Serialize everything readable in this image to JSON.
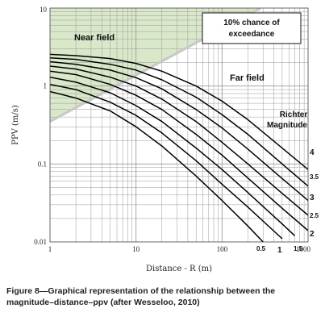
{
  "chart_data": {
    "type": "line",
    "x_scale": "log",
    "y_scale": "log",
    "xlabel": "Distance - R (m)",
    "ylabel": "PPV (m/s)",
    "xlim": [
      1,
      1000
    ],
    "ylim": [
      0.01,
      10
    ],
    "x_ticks": [
      "1",
      "10",
      "100",
      "1000"
    ],
    "y_ticks": [
      "0.01",
      "0.1",
      "1",
      "10"
    ],
    "grid": true,
    "annotation_box": "10% chance of exceedance",
    "near_field_label": "Near field",
    "far_field_label": "Far field",
    "legend_title": "Richter Magnitude",
    "series": [
      {
        "name": "0.5",
        "x": [
          1,
          2,
          5,
          10,
          20,
          50,
          100,
          200,
          300
        ],
        "y": [
          0.85,
          0.7,
          0.48,
          0.3,
          0.17,
          0.07,
          0.034,
          0.016,
          0.01
        ]
      },
      {
        "name": "1",
        "x": [
          1,
          2,
          5,
          10,
          20,
          50,
          100,
          200,
          500
        ],
        "y": [
          1.05,
          0.9,
          0.62,
          0.42,
          0.25,
          0.11,
          0.055,
          0.028,
          0.011
        ]
      },
      {
        "name": "1.5",
        "x": [
          1,
          2,
          5,
          10,
          20,
          50,
          100,
          200,
          500,
          700
        ],
        "y": [
          1.3,
          1.12,
          0.82,
          0.56,
          0.35,
          0.16,
          0.085,
          0.043,
          0.017,
          0.012
        ]
      },
      {
        "name": "2",
        "x": [
          1,
          2,
          5,
          10,
          20,
          50,
          100,
          200,
          500,
          1000
        ],
        "y": [
          1.55,
          1.4,
          1.05,
          0.76,
          0.5,
          0.24,
          0.13,
          0.066,
          0.027,
          0.014
        ]
      },
      {
        "name": "2.5",
        "x": [
          1,
          2,
          5,
          10,
          20,
          50,
          100,
          200,
          500,
          1000
        ],
        "y": [
          1.8,
          1.65,
          1.3,
          1.0,
          0.68,
          0.35,
          0.19,
          0.1,
          0.042,
          0.022
        ]
      },
      {
        "name": "3",
        "x": [
          1,
          2,
          5,
          10,
          20,
          50,
          100,
          200,
          500,
          1000
        ],
        "y": [
          2.05,
          1.9,
          1.6,
          1.28,
          0.92,
          0.5,
          0.29,
          0.155,
          0.065,
          0.034
        ]
      },
      {
        "name": "3.5",
        "x": [
          1,
          2,
          5,
          10,
          20,
          50,
          100,
          200,
          500,
          1000
        ],
        "y": [
          2.3,
          2.2,
          1.9,
          1.6,
          1.2,
          0.72,
          0.43,
          0.24,
          0.1,
          0.052
        ]
      },
      {
        "name": "4",
        "x": [
          1,
          2,
          5,
          10,
          20,
          50,
          100,
          200,
          500,
          1000
        ],
        "y": [
          2.55,
          2.45,
          2.25,
          1.95,
          1.55,
          1.0,
          0.64,
          0.37,
          0.16,
          0.085
        ]
      }
    ],
    "near_field_boundary": {
      "x": [
        1,
        280
      ],
      "y": [
        0.35,
        10
      ]
    },
    "colors": {
      "near_field": "#d9e8c9",
      "curve": "#000000",
      "grid": "#9a9a9a",
      "boundary": "#c8c8c8"
    }
  },
  "caption": "Figure 8—Graphical representation of the relationship between the magnitude–distance–ppv (after Wesseloo, 2010)"
}
